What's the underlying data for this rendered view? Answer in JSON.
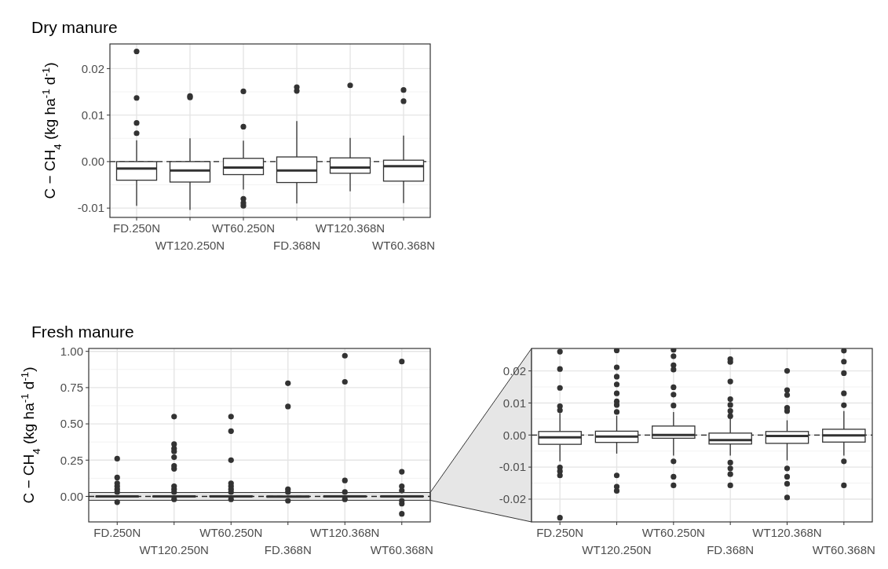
{
  "chart_data": [
    {
      "type": "box",
      "title": "Dry manure",
      "ylabel": "C − CH$_{4}$ (kg ha$^{-1}$ d$^{-1}$)",
      "categories": [
        "FD.250N",
        "WT120.250N",
        "WT60.250N",
        "FD.368N",
        "WT120.368N",
        "WT60.368N"
      ],
      "ylim": [
        -0.012,
        0.0253
      ],
      "yticks": [
        {
          "value": -0.01,
          "label": "-0.01"
        },
        {
          "value": 0,
          "label": "0.00"
        },
        {
          "value": 0.01,
          "label": "0.01"
        },
        {
          "value": 0.02,
          "label": "0.02"
        }
      ],
      "grid": true,
      "ref_lines": [
        {
          "axis": "y",
          "value": 0,
          "line_style": "dashed",
          "color": "#222222"
        }
      ],
      "series": [
        {
          "color": "#333333",
          "boxes": [
            {
              "low": -0.0095,
              "q1": -0.004,
              "median": -0.0015,
              "q3": 0,
              "high": 0.0046,
              "outliers": [
                0.0237,
                0.0137,
                0.0083,
                0.0061
              ]
            },
            {
              "low": -0.0104,
              "q1": -0.0044,
              "median": -0.0019,
              "q3": 0,
              "high": 0.005,
              "outliers": [
                0.0138,
                0.0141
              ]
            },
            {
              "low": -0.006,
              "q1": -0.0028,
              "median": -0.0013,
              "q3": 0.0007,
              "high": 0.0045,
              "outliers": [
                0.0151,
                0.0075,
                -0.008,
                -0.0089,
                -0.0095
              ]
            },
            {
              "low": -0.009,
              "q1": -0.0045,
              "median": -0.0019,
              "q3": 0.001,
              "high": 0.0087,
              "outliers": [
                0.016,
                0.0152
              ]
            },
            {
              "low": -0.0064,
              "q1": -0.0025,
              "median": -0.0013,
              "q3": 0.0008,
              "high": 0.0051,
              "outliers": [
                0.0164
              ]
            },
            {
              "low": -0.0089,
              "q1": -0.0042,
              "median": -0.001,
              "q3": 0.0003,
              "high": 0.0056,
              "outliers": [
                0.0154,
                0.013
              ]
            }
          ]
        }
      ]
    },
    {
      "type": "box",
      "title": "Fresh manure",
      "ylabel": "C − CH$_{4}$ (kg ha$^{-1}$ d$^{-1}$)",
      "categories": [
        "FD.250N",
        "WT120.250N",
        "WT60.250N",
        "FD.368N",
        "WT120.368N",
        "WT60.368N"
      ],
      "ylim": [
        -0.176,
        1.02
      ],
      "yticks": [
        {
          "value": 0,
          "label": "0.00"
        },
        {
          "value": 0.25,
          "label": "0.25"
        },
        {
          "value": 0.5,
          "label": "0.50"
        },
        {
          "value": 0.75,
          "label": "0.75"
        },
        {
          "value": 1,
          "label": "1.00"
        }
      ],
      "grid": true,
      "ref_lines": [
        {
          "axis": "y",
          "value": 0,
          "line_style": "dashed",
          "color": "#222222"
        }
      ],
      "bands": [
        {
          "axis": "y",
          "from": -0.027,
          "to": 0.027,
          "color": "#e6e6e6"
        }
      ],
      "series": [
        {
          "color": "#333333",
          "boxes": [
            {
              "low": -0.0082,
              "q1": -0.0029,
              "median": -0.0007,
              "q3": 0.0011,
              "high": 0.0068,
              "outliers": [
                0.26,
                0.13,
                0.09,
                0.07,
                0.05,
                0.03,
                -0.04
              ]
            },
            {
              "low": -0.0058,
              "q1": -0.0023,
              "median": -0.0005,
              "q3": 0.0012,
              "high": 0.006,
              "outliers": [
                0.55,
                0.36,
                0.33,
                0.31,
                0.27,
                0.21,
                0.19,
                0.07,
                0.05,
                0.03,
                -0.02
              ]
            },
            {
              "low": -0.0064,
              "q1": -0.001,
              "median": 0,
              "q3": 0.0028,
              "high": 0.0072,
              "outliers": [
                0.55,
                0.45,
                0.25,
                0.09,
                0.07,
                0.05,
                0.03,
                -0.02
              ]
            },
            {
              "low": -0.0064,
              "q1": -0.0028,
              "median": -0.0016,
              "q3": 0.0006,
              "high": 0.0055,
              "outliers": [
                0.78,
                0.62,
                0.05,
                0.03,
                -0.03
              ]
            },
            {
              "low": -0.0079,
              "q1": -0.0026,
              "median": -0.0003,
              "q3": 0.0011,
              "high": 0.0046,
              "outliers": [
                0.97,
                0.79,
                0.11,
                0.03,
                -0.02
              ]
            },
            {
              "low": -0.0064,
              "q1": -0.0022,
              "median": -0.0001,
              "q3": 0.0018,
              "high": 0.0075,
              "outliers": [
                0.93,
                0.17,
                0.07,
                0.04,
                -0.03,
                -0.05,
                -0.12
              ]
            }
          ]
        }
      ]
    },
    {
      "type": "box",
      "categories": [
        "FD.250N",
        "WT120.250N",
        "WT60.250N",
        "FD.368N",
        "WT120.368N",
        "WT60.368N"
      ],
      "ylim": [
        -0.0271,
        0.027
      ],
      "yticks": [
        {
          "value": -0.02,
          "label": "-0.02"
        },
        {
          "value": -0.01,
          "label": "-0.01"
        },
        {
          "value": 0,
          "label": "0.00"
        },
        {
          "value": 0.01,
          "label": "0.01"
        },
        {
          "value": 0.02,
          "label": "0.02"
        }
      ],
      "grid": true,
      "ref_lines": [
        {
          "axis": "y",
          "value": 0,
          "line_style": "dashed",
          "color": "#222222"
        }
      ],
      "series": [
        {
          "color": "#333333",
          "boxes": [
            {
              "low": -0.0082,
              "q1": -0.0029,
              "median": -0.0007,
              "q3": 0.0011,
              "high": 0.0068,
              "outliers": [
                0.026,
                0.0206,
                0.0147,
                0.009,
                0.0077,
                -0.0101,
                -0.0113,
                -0.0126,
                -0.0258
              ]
            },
            {
              "low": -0.0058,
              "q1": -0.0023,
              "median": -0.0005,
              "q3": 0.0012,
              "high": 0.006,
              "outliers": [
                0.0264,
                0.0211,
                0.0182,
                0.0158,
                0.013,
                0.0105,
                0.0094,
                0.0072,
                -0.0126,
                -0.0161,
                -0.0174
              ]
            },
            {
              "low": -0.0064,
              "q1": -0.001,
              "median": 0,
              "q3": 0.0028,
              "high": 0.0072,
              "outliers": [
                0.0266,
                0.0246,
                0.0218,
                0.0204,
                0.0149,
                0.0126,
                0.0092,
                -0.0082,
                -0.013,
                -0.0157
              ]
            },
            {
              "low": -0.0064,
              "q1": -0.0028,
              "median": -0.0016,
              "q3": 0.0006,
              "high": 0.0055,
              "outliers": [
                0.0237,
                0.0228,
                0.0167,
                0.0112,
                0.0094,
                0.0075,
                0.0059,
                -0.0086,
                -0.0104,
                -0.0122,
                -0.0157
              ]
            },
            {
              "low": -0.0079,
              "q1": -0.0026,
              "median": -0.0003,
              "q3": 0.0011,
              "high": 0.0046,
              "outliers": [
                0.02,
                0.014,
                0.0125,
                0.0085,
                0.0075,
                -0.0104,
                -0.013,
                -0.0152,
                -0.0195
              ]
            },
            {
              "low": -0.0064,
              "q1": -0.0022,
              "median": -0.0001,
              "q3": 0.0018,
              "high": 0.0075,
              "outliers": [
                0.0263,
                0.0229,
                0.0193,
                0.013,
                0.0093,
                -0.0082,
                -0.0157
              ]
            }
          ]
        }
      ]
    }
  ]
}
